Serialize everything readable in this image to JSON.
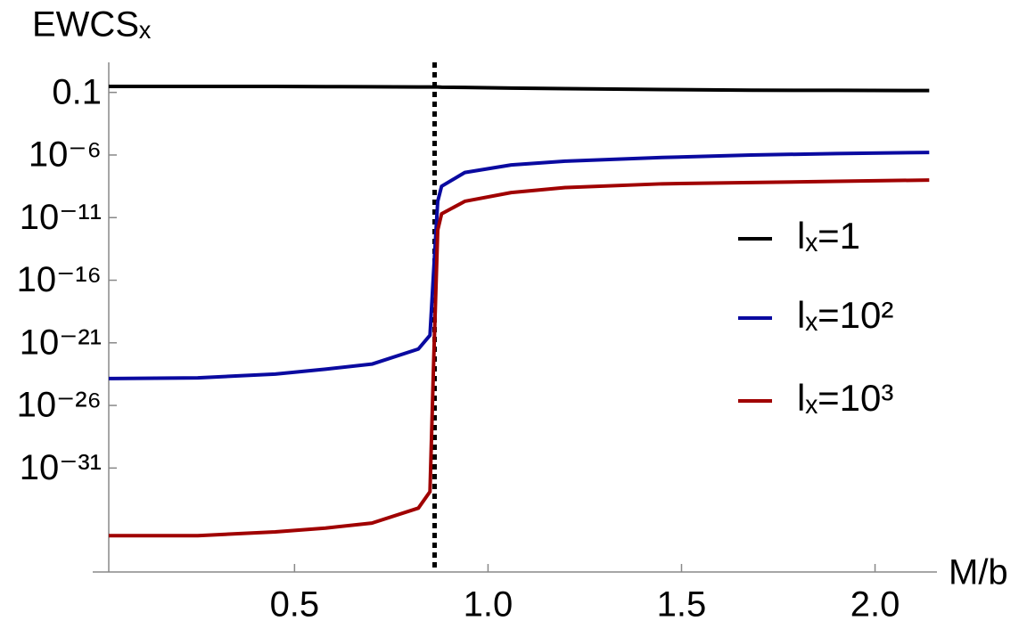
{
  "chart_data": {
    "type": "line",
    "title": "EWCSₓ",
    "xlabel": "M/b",
    "log_y": true,
    "legend": "right",
    "xlim": [
      0.02,
      2.16
    ],
    "xticks": [
      0.5,
      {
        "value": 1.0,
        "label": "1.0"
      },
      1.5,
      {
        "value": 2.0,
        "label": "2.0"
      }
    ],
    "ylim": [
      5e-40,
      25
    ],
    "yticks": [
      0.1,
      {
        "value": 1e-06,
        "label": "10⁻⁶"
      },
      {
        "value": 1e-11,
        "label": "10⁻¹¹"
      },
      {
        "value": 1e-16,
        "label": "10⁻¹⁶"
      },
      {
        "value": 1e-21,
        "label": "10⁻²¹"
      },
      {
        "value": 1e-26,
        "label": "10⁻²⁶"
      },
      {
        "value": 1e-31,
        "label": "10⁻³¹"
      }
    ],
    "vlines": [
      0.862
    ],
    "x": [
      0.02,
      0.25,
      0.45,
      0.58,
      0.7,
      0.82,
      0.85,
      0.86,
      0.87,
      0.88,
      0.94,
      1.06,
      1.2,
      1.45,
      1.68,
      1.9,
      2.14
    ],
    "series": [
      {
        "name": "lₓ=1",
        "color": "#000000",
        "values": [
          0.3,
          0.3,
          0.3,
          0.29,
          0.28,
          0.27,
          0.27,
          0.27,
          0.27,
          0.26,
          0.25,
          0.22,
          0.2,
          0.17,
          0.15,
          0.145,
          0.14
        ]
      },
      {
        "name": "lₓ=10²",
        "color": "#0a0aa0",
        "values": [
          1.4e-24,
          1.6e-24,
          3.2e-24,
          7.9e-24,
          2e-23,
          3.2e-22,
          4e-21,
          1e-15,
          2e-10,
          3.2e-09,
          4e-08,
          1.6e-07,
          3.2e-07,
          6.3e-07,
          1e-06,
          1.3e-06,
          1.6e-06
        ]
      },
      {
        "name": "lₓ=10³",
        "color": "#a00000",
        "values": [
          4e-37,
          4e-37,
          7.9e-37,
          1.6e-36,
          4e-36,
          6.3e-35,
          1.3e-33,
          1e-22,
          1e-12,
          2e-11,
          2e-10,
          1e-09,
          2.5e-09,
          5e-09,
          6.3e-09,
          7.9e-09,
          1e-08
        ]
      }
    ]
  }
}
